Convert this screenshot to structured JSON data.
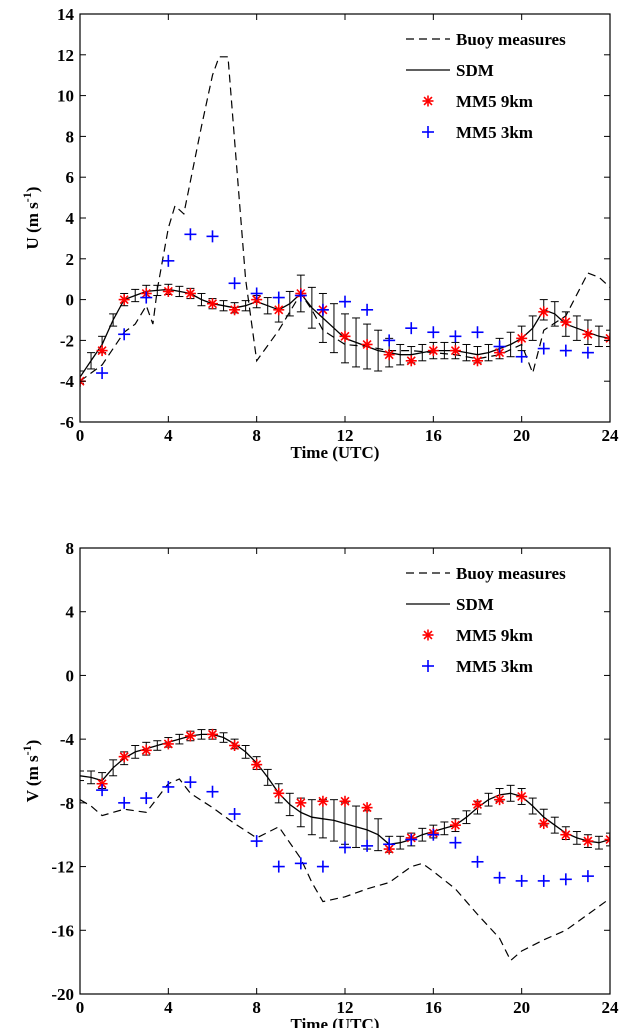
{
  "chart_data": [
    {
      "type": "line",
      "xlabel": "Time (UTC)",
      "ylabel_main": "U (m s",
      "ylabel_sup": "-1",
      "ylabel_close": ")",
      "xlim": [
        0,
        24
      ],
      "ylim": [
        -6,
        14
      ],
      "xticks": [
        0,
        4,
        8,
        12,
        16,
        20,
        24
      ],
      "yticks": [
        -6,
        -4,
        -2,
        0,
        2,
        4,
        6,
        8,
        10,
        12,
        14
      ],
      "legend_position": "top-right",
      "legend": [
        "Buoy measures",
        "SDM",
        "MM5 9km",
        "MM5 3km"
      ],
      "series": [
        {
          "name": "Buoy measures",
          "style": "dashed",
          "color": "#000000",
          "x": [
            0,
            1,
            2,
            2.5,
            3,
            3.3,
            3.5,
            4,
            4.3,
            4.7,
            5,
            5.5,
            6,
            6.3,
            6.7,
            7,
            7.5,
            8,
            9,
            10,
            10.5,
            11,
            12,
            13,
            14,
            15,
            16,
            17,
            18,
            19,
            20,
            20.5,
            21,
            22,
            23,
            23.5,
            24
          ],
          "y": [
            -4,
            -3.2,
            -1.6,
            -1.2,
            -0.3,
            -1.2,
            0.5,
            3.5,
            4.6,
            4.2,
            5.8,
            8.5,
            11,
            11.9,
            11.9,
            7.8,
            1,
            -3,
            -1.5,
            0.3,
            -0.5,
            -1.5,
            -2.2,
            -2.3,
            -2.5,
            -2.5,
            -2.6,
            -2.7,
            -2.9,
            -2.7,
            -2.2,
            -3.6,
            -1.5,
            -0.8,
            1.3,
            1.1,
            0.6
          ]
        },
        {
          "name": "SDM",
          "style": "solid",
          "color": "#000000",
          "x": [
            0,
            0.5,
            1,
            1.5,
            2,
            2.5,
            3,
            3.5,
            4,
            4.5,
            5,
            5.5,
            6,
            6.5,
            7,
            7.5,
            8,
            8.5,
            9,
            9.5,
            10,
            10.5,
            11,
            11.5,
            12,
            12.5,
            13,
            13.5,
            14,
            14.5,
            15,
            15.5,
            16,
            16.5,
            17,
            17.5,
            18,
            18.5,
            19,
            19.5,
            20,
            20.5,
            21,
            21.5,
            22,
            22.5,
            23,
            23.5,
            24
          ],
          "y": [
            -3.8,
            -3.0,
            -2.2,
            -1.0,
            0.0,
            0.2,
            0.4,
            0.45,
            0.5,
            0.4,
            0.3,
            0.0,
            -0.2,
            -0.3,
            -0.4,
            -0.3,
            -0.1,
            -0.3,
            -0.5,
            -0.2,
            0.3,
            -0.4,
            -0.9,
            -1.4,
            -1.9,
            -2.1,
            -2.3,
            -2.5,
            -2.6,
            -2.7,
            -2.7,
            -2.6,
            -2.5,
            -2.5,
            -2.5,
            -2.6,
            -2.7,
            -2.6,
            -2.4,
            -2.2,
            -1.9,
            -1.4,
            -0.5,
            -0.7,
            -1.2,
            -1.4,
            -1.6,
            -1.8,
            -1.9
          ]
        },
        {
          "name": "SDM error",
          "style": "errorbar",
          "color": "#000000",
          "x": [
            0,
            0.5,
            1,
            1.5,
            2,
            2.5,
            3,
            3.5,
            4,
            4.5,
            5,
            5.5,
            6,
            6.5,
            7,
            7.5,
            8,
            8.5,
            9,
            9.5,
            10,
            10.5,
            11,
            11.5,
            12,
            12.5,
            13,
            13.5,
            14,
            14.5,
            15,
            15.5,
            16,
            16.5,
            17,
            17.5,
            18,
            18.5,
            19,
            19.5,
            20,
            20.5,
            21,
            21.5,
            22,
            22.5,
            23,
            23.5,
            24
          ],
          "lo": [
            -4.1,
            -3.4,
            -2.6,
            -1.3,
            -0.3,
            -0.1,
            0.1,
            0.2,
            0.25,
            0.15,
            0.05,
            -0.3,
            -0.45,
            -0.55,
            -0.65,
            -0.55,
            -0.4,
            -0.7,
            -1.1,
            -0.8,
            -0.6,
            -1.4,
            -2.1,
            -2.6,
            -3.1,
            -3.3,
            -3.4,
            -3.5,
            -3.3,
            -3.2,
            -3.1,
            -3.0,
            -2.9,
            -2.9,
            -2.9,
            -3.0,
            -3.1,
            -3.0,
            -2.9,
            -2.8,
            -2.5,
            -2.0,
            -1.0,
            -1.3,
            -1.8,
            -2.0,
            -2.2,
            -2.3,
            -2.3
          ],
          "hi": [
            -3.5,
            -2.6,
            -1.8,
            -0.7,
            0.3,
            0.5,
            0.7,
            0.7,
            0.75,
            0.65,
            0.55,
            0.3,
            0.05,
            -0.05,
            -0.15,
            -0.05,
            0.2,
            0.1,
            0.1,
            0.4,
            1.2,
            0.6,
            0.3,
            -0.2,
            -0.7,
            -0.9,
            -1.2,
            -1.5,
            -1.9,
            -2.2,
            -2.3,
            -2.2,
            -2.1,
            -2.1,
            -2.1,
            -2.2,
            -2.3,
            -2.2,
            -1.9,
            -1.6,
            -1.3,
            -0.8,
            0.0,
            -0.1,
            -0.6,
            -0.8,
            -1.0,
            -1.3,
            -1.5
          ]
        },
        {
          "name": "MM5 9km",
          "style": "star",
          "color": "#ff0000",
          "x": [
            0,
            1,
            2,
            3,
            4,
            5,
            6,
            7,
            8,
            9,
            10,
            11,
            12,
            13,
            14,
            15,
            16,
            17,
            18,
            19,
            20,
            21,
            22,
            23,
            24
          ],
          "y": [
            -4.0,
            -2.5,
            0.0,
            0.3,
            0.4,
            0.3,
            -0.2,
            -0.5,
            0.0,
            -0.5,
            0.3,
            -0.5,
            -1.8,
            -2.2,
            -2.7,
            -3.0,
            -2.5,
            -2.5,
            -3.0,
            -2.6,
            -1.9,
            -0.6,
            -1.1,
            -1.7,
            -1.9
          ]
        },
        {
          "name": "MM5 3km",
          "style": "plus",
          "color": "#0000ff",
          "x": [
            1,
            2,
            3,
            4,
            5,
            6,
            7,
            8,
            9,
            10,
            11,
            12,
            13,
            14,
            15,
            16,
            17,
            18,
            19,
            20,
            21,
            22,
            23
          ],
          "y": [
            -3.6,
            -1.7,
            0.1,
            1.9,
            3.2,
            3.1,
            0.8,
            0.3,
            0.1,
            0.2,
            -0.5,
            -0.1,
            -0.5,
            -2.0,
            -1.4,
            -1.6,
            -1.8,
            -1.6,
            -2.3,
            -2.8,
            -2.4,
            -2.5,
            -2.6
          ]
        }
      ]
    },
    {
      "type": "line",
      "xlabel": "Time (UTC)",
      "ylabel_main": "V (m s",
      "ylabel_sup": "-1",
      "ylabel_close": ")",
      "xlim": [
        0,
        24
      ],
      "ylim": [
        -20,
        8
      ],
      "xticks": [
        0,
        4,
        8,
        12,
        16,
        20,
        24
      ],
      "yticks": [
        -20,
        -16,
        -12,
        -8,
        -4,
        0,
        4,
        8
      ],
      "legend_position": "top-right",
      "legend": [
        "Buoy measures",
        "SDM",
        "MM5 9km",
        "MM5 3km"
      ],
      "series": [
        {
          "name": "Buoy measures",
          "style": "dashed",
          "color": "#000000",
          "x": [
            0,
            0.5,
            1,
            2,
            3,
            4,
            4.5,
            5,
            6,
            7,
            8,
            9,
            10,
            10.5,
            11,
            12,
            13,
            14,
            15,
            15.5,
            16,
            17,
            18,
            19,
            19.5,
            20,
            21,
            22,
            23,
            24
          ],
          "y": [
            -7.8,
            -8.2,
            -8.8,
            -8.4,
            -8.6,
            -6.8,
            -6.5,
            -7.4,
            -8.3,
            -9.3,
            -10.2,
            -9.5,
            -11.5,
            -13.0,
            -14.2,
            -13.9,
            -13.4,
            -13.0,
            -12.0,
            -11.8,
            -12.3,
            -13.4,
            -15.0,
            -16.5,
            -17.9,
            -17.3,
            -16.6,
            -16.0,
            -15.0,
            -14.0
          ]
        },
        {
          "name": "SDM",
          "style": "solid",
          "color": "#000000",
          "x": [
            0,
            0.5,
            1,
            1.5,
            2,
            2.5,
            3,
            3.5,
            4,
            4.5,
            5,
            5.5,
            6,
            6.5,
            7,
            7.5,
            8,
            8.5,
            9,
            9.5,
            10,
            10.5,
            11,
            11.5,
            12,
            12.5,
            13,
            13.5,
            14,
            14.5,
            15,
            15.5,
            16,
            16.5,
            17,
            17.5,
            18,
            18.5,
            19,
            19.5,
            20,
            20.5,
            21,
            21.5,
            22,
            22.5,
            23,
            23.5,
            24
          ],
          "y": [
            -6.3,
            -6.4,
            -6.6,
            -5.8,
            -5.2,
            -4.8,
            -4.6,
            -4.4,
            -4.2,
            -4.0,
            -3.8,
            -3.7,
            -3.7,
            -3.9,
            -4.3,
            -4.8,
            -5.5,
            -6.4,
            -7.4,
            -8.1,
            -8.6,
            -8.9,
            -9.0,
            -9.1,
            -9.3,
            -9.5,
            -9.7,
            -10.0,
            -10.6,
            -10.5,
            -10.3,
            -10.0,
            -9.8,
            -9.6,
            -9.4,
            -8.9,
            -8.3,
            -7.8,
            -7.5,
            -7.4,
            -7.6,
            -8.2,
            -8.9,
            -9.4,
            -9.9,
            -10.2,
            -10.4,
            -10.5,
            -10.3
          ]
        },
        {
          "name": "SDM error",
          "style": "errorbar",
          "color": "#000000",
          "x": [
            0,
            0.5,
            1,
            1.5,
            2,
            2.5,
            3,
            3.5,
            4,
            4.5,
            5,
            5.5,
            6,
            6.5,
            7,
            7.5,
            8,
            8.5,
            9,
            9.5,
            10,
            10.5,
            11,
            11.5,
            12,
            12.5,
            13,
            13.5,
            14,
            14.5,
            15,
            15.5,
            16,
            16.5,
            17,
            17.5,
            18,
            18.5,
            19,
            19.5,
            20,
            20.5,
            21,
            21.5,
            22,
            22.5,
            23,
            23.5,
            24
          ],
          "lo": [
            -6.6,
            -6.8,
            -7.1,
            -6.3,
            -5.6,
            -5.2,
            -5.0,
            -4.7,
            -4.5,
            -4.3,
            -4.1,
            -4.0,
            -4.0,
            -4.2,
            -4.6,
            -5.2,
            -5.9,
            -6.9,
            -8.0,
            -8.8,
            -9.5,
            -10.0,
            -10.2,
            -10.4,
            -10.6,
            -10.8,
            -10.9,
            -11.0,
            -11.1,
            -10.9,
            -10.7,
            -10.4,
            -10.2,
            -10.0,
            -9.8,
            -9.3,
            -8.7,
            -8.2,
            -7.9,
            -7.9,
            -8.1,
            -8.7,
            -9.4,
            -9.9,
            -10.3,
            -10.6,
            -10.8,
            -10.9,
            -10.7
          ]
        },
        {
          "name": "MM5 9km",
          "style": "star",
          "color": "#ff0000",
          "x": [
            1,
            2,
            3,
            4,
            5,
            6,
            7,
            8,
            9,
            10,
            11,
            12,
            13,
            14,
            15,
            16,
            17,
            18,
            19,
            20,
            21,
            22,
            23,
            24
          ],
          "y": [
            -6.8,
            -5.1,
            -4.7,
            -4.3,
            -3.8,
            -3.7,
            -4.4,
            -5.6,
            -7.4,
            -8.0,
            -7.9,
            -7.9,
            -8.3,
            -10.9,
            -10.2,
            -9.9,
            -9.4,
            -8.1,
            -7.8,
            -7.6,
            -9.3,
            -10.0,
            -10.4,
            -10.3
          ]
        },
        {
          "name": "MM5 3km",
          "style": "plus",
          "color": "#0000ff",
          "x": [
            1,
            2,
            3,
            4,
            5,
            6,
            7,
            8,
            9,
            10,
            11,
            12,
            13,
            14,
            15,
            16,
            17,
            18,
            19,
            20,
            21,
            22,
            23
          ],
          "y": [
            -7.2,
            -8.0,
            -7.7,
            -7.0,
            -6.7,
            -7.3,
            -8.7,
            -10.4,
            -12.0,
            -11.8,
            -12.0,
            -10.8,
            -10.7,
            -10.6,
            -10.3,
            -10.0,
            -10.5,
            -11.7,
            -12.7,
            -12.9,
            -12.9,
            -12.8,
            -12.6
          ]
        }
      ]
    }
  ]
}
